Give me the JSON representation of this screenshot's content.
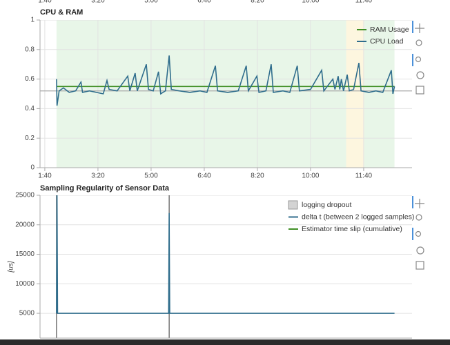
{
  "chart_data": [
    {
      "type": "line",
      "title": "CPU & RAM",
      "xlim": [
        91,
        791
      ],
      "xticks": [
        {
          "value": 100,
          "label": "1:40"
        },
        {
          "value": 200,
          "label": "3:20"
        },
        {
          "value": 300,
          "label": "5:00"
        },
        {
          "value": 400,
          "label": "6:40"
        },
        {
          "value": 500,
          "label": "8:20"
        },
        {
          "value": 600,
          "label": "10:00"
        },
        {
          "value": 700,
          "label": "11:40"
        }
      ],
      "ylim": [
        0,
        1
      ],
      "yticks": [
        0,
        0.2,
        0.4,
        0.6,
        0.8,
        1
      ],
      "grid": true,
      "legend": "top-right",
      "regions": [
        {
          "start": 122,
          "end": 758,
          "color": "#e8f6e8"
        },
        {
          "start": 667,
          "end": 701,
          "color": "#fdf6df"
        }
      ],
      "reference_line": {
        "value": 0.52,
        "color": "#aaaaaa"
      },
      "series": [
        {
          "name": "RAM Usage",
          "color": "#3f8f24",
          "x": [
            122,
            758
          ],
          "values": [
            0.55,
            0.55
          ]
        },
        {
          "name": "CPU Load",
          "color": "#2f6d8c",
          "x": [
            122,
            123,
            127,
            135,
            146,
            158,
            168,
            171,
            184,
            197,
            210,
            217,
            221,
            236,
            256,
            260,
            270,
            274,
            291,
            295,
            304,
            314,
            318,
            327,
            334,
            338,
            353,
            373,
            392,
            405,
            421,
            425,
            444,
            464,
            479,
            483,
            499,
            503,
            516,
            526,
            530,
            548,
            561,
            575,
            579,
            600,
            621,
            625,
            642,
            646,
            652,
            655,
            658,
            662,
            669,
            673,
            681,
            691,
            695,
            710,
            723,
            736,
            752,
            755,
            758
          ],
          "values": [
            0.6,
            0.42,
            0.52,
            0.54,
            0.51,
            0.52,
            0.58,
            0.51,
            0.52,
            0.51,
            0.5,
            0.59,
            0.53,
            0.52,
            0.62,
            0.52,
            0.64,
            0.52,
            0.7,
            0.53,
            0.52,
            0.65,
            0.5,
            0.52,
            0.76,
            0.53,
            0.52,
            0.51,
            0.52,
            0.51,
            0.69,
            0.52,
            0.51,
            0.52,
            0.69,
            0.52,
            0.62,
            0.51,
            0.52,
            0.7,
            0.51,
            0.52,
            0.51,
            0.69,
            0.52,
            0.53,
            0.66,
            0.52,
            0.6,
            0.53,
            0.62,
            0.53,
            0.6,
            0.52,
            0.63,
            0.52,
            0.53,
            0.71,
            0.52,
            0.51,
            0.52,
            0.51,
            0.66,
            0.5,
            0.55
          ]
        }
      ]
    },
    {
      "type": "line",
      "title": "Sampling Regularity of Sensor Data",
      "y_label": "[us]",
      "xlim": [
        91,
        791
      ],
      "ylim": [
        800,
        25000
      ],
      "yticks": [
        5000,
        10000,
        15000,
        20000,
        25000
      ],
      "grid": true,
      "legend": "top-right",
      "spans": {
        "name": "logging dropout",
        "color": "#555555",
        "legend_color": "#d3d3d3",
        "x": [
          122,
          334
        ]
      },
      "series": [
        {
          "name": "delta t (between 2 logged samples)",
          "color": "#2f6d8c",
          "x": [
            122,
            123,
            124,
            333,
            334,
            335,
            758
          ],
          "values": [
            5000,
            25000,
            5000,
            5000,
            22000,
            5000,
            5000
          ]
        },
        {
          "name": "Estimator time slip (cumulative)",
          "color": "#3f8f24",
          "x": [],
          "values": []
        }
      ]
    }
  ]
}
